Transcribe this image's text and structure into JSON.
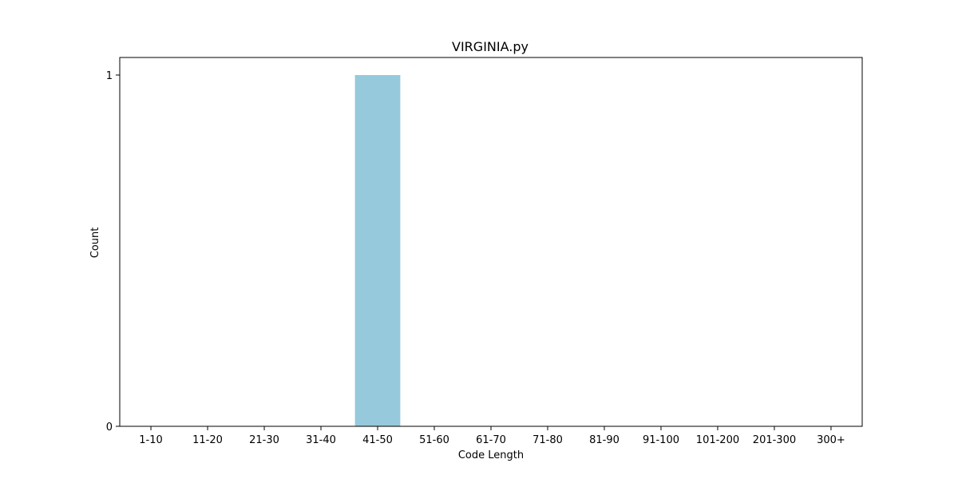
{
  "chart_data": {
    "type": "bar",
    "title": "VIRGINIA.py",
    "xlabel": "Code Length",
    "ylabel": "Count",
    "categories": [
      "1-10",
      "11-20",
      "21-30",
      "31-40",
      "41-50",
      "51-60",
      "61-70",
      "71-80",
      "81-90",
      "91-100",
      "101-200",
      "201-300",
      "300+"
    ],
    "values": [
      0,
      0,
      0,
      0,
      1,
      0,
      0,
      0,
      0,
      0,
      0,
      0,
      0
    ],
    "ylim": [
      0,
      1.05
    ],
    "yticks": [
      0,
      1
    ],
    "bar_color": "#96c9dc",
    "grid": false,
    "legend": "none"
  }
}
